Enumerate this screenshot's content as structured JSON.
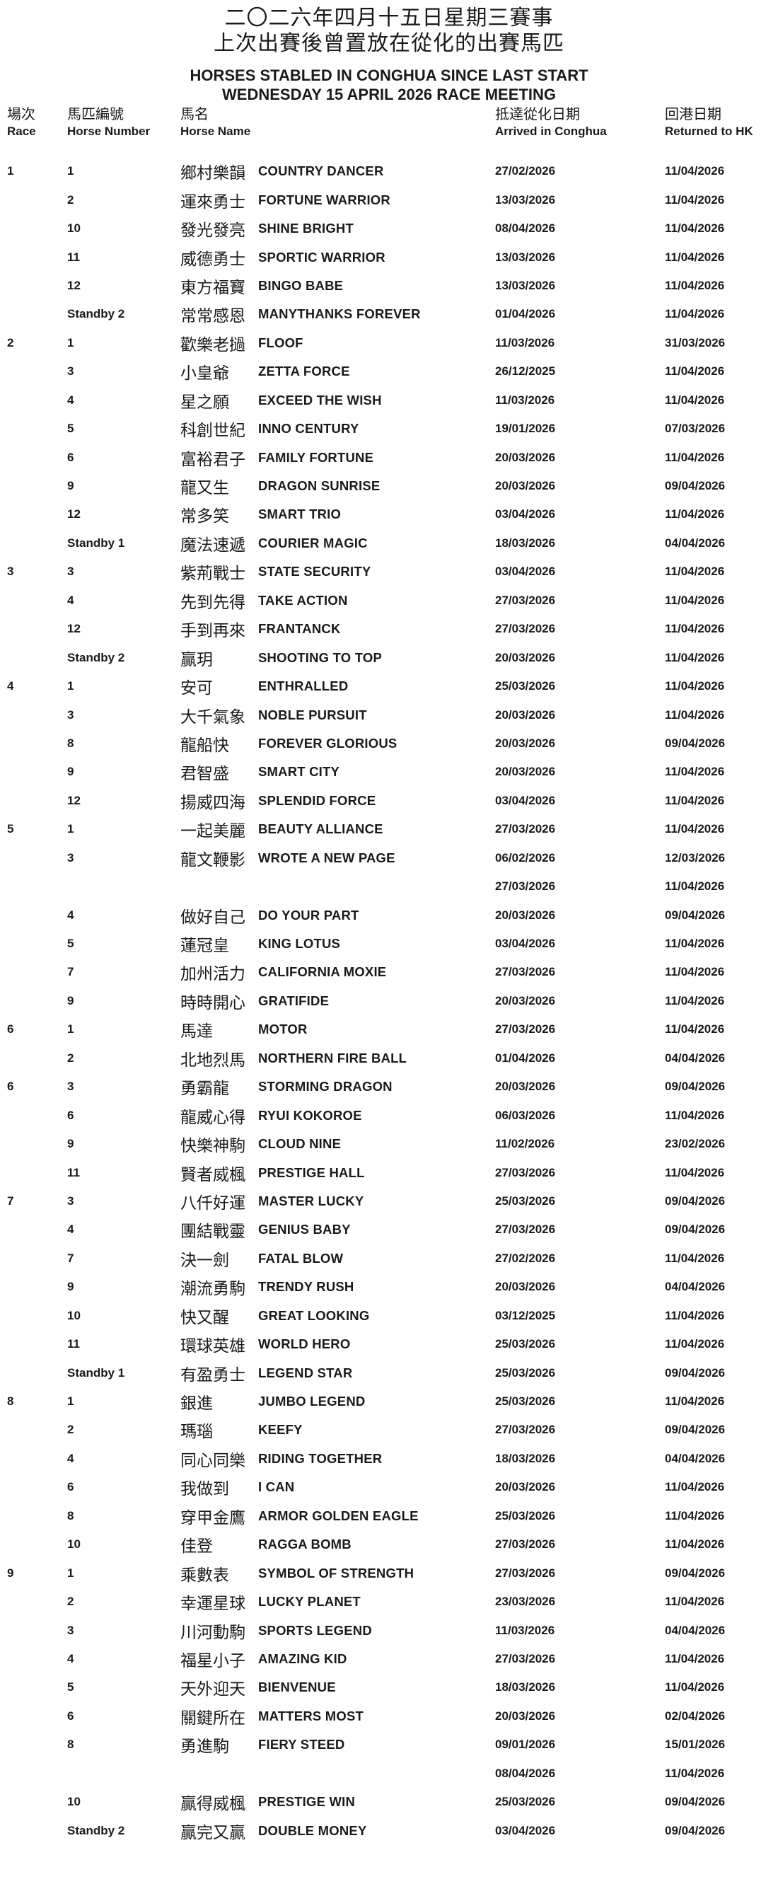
{
  "page": {
    "title_zh_line1": "二〇二六年四月十五日星期三賽事",
    "title_zh_line2": "上次出賽後曾置放在從化的出賽馬匹",
    "title_en_line1": "HORSES STABLED IN CONGHUA SINCE LAST START",
    "title_en_line2": "WEDNESDAY 15 APRIL 2026 RACE MEETING"
  },
  "columns": {
    "race_zh": "場次",
    "race_en": "Race",
    "number_zh": "馬匹編號",
    "number_en": "Horse Number",
    "name_zh": "馬名",
    "name_en": "Horse Name",
    "arrived_zh": "抵達從化日期",
    "arrived_en": "Arrived in Conghua",
    "returned_zh": "回港日期",
    "returned_en": "Returned to HK"
  },
  "colors": {
    "text": "#1a1a1a",
    "background": "#ffffff"
  },
  "rows": [
    {
      "race": "1",
      "number": "1",
      "name_zh": "鄉村樂韻",
      "name_en": "COUNTRY DANCER",
      "arrived": "27/02/2026",
      "returned": "11/04/2026"
    },
    {
      "race": "",
      "number": "2",
      "name_zh": "運來勇士",
      "name_en": "FORTUNE WARRIOR",
      "arrived": "13/03/2026",
      "returned": "11/04/2026"
    },
    {
      "race": "",
      "number": "10",
      "name_zh": "發光發亮",
      "name_en": "SHINE BRIGHT",
      "arrived": "08/04/2026",
      "returned": "11/04/2026"
    },
    {
      "race": "",
      "number": "11",
      "name_zh": "威德勇士",
      "name_en": "SPORTIC WARRIOR",
      "arrived": "13/03/2026",
      "returned": "11/04/2026"
    },
    {
      "race": "",
      "number": "12",
      "name_zh": "東方福寶",
      "name_en": "BINGO BABE",
      "arrived": "13/03/2026",
      "returned": "11/04/2026"
    },
    {
      "race": "",
      "number": "Standby 2",
      "name_zh": "常常感恩",
      "name_en": "MANYTHANKS FOREVER",
      "arrived": "01/04/2026",
      "returned": "11/04/2026"
    },
    {
      "race": "2",
      "number": "1",
      "name_zh": "歡樂老撾",
      "name_en": "FLOOF",
      "arrived": "11/03/2026",
      "returned": "31/03/2026"
    },
    {
      "race": "",
      "number": "3",
      "name_zh": "小皇爺",
      "name_en": "ZETTA FORCE",
      "arrived": "26/12/2025",
      "returned": "11/04/2026"
    },
    {
      "race": "",
      "number": "4",
      "name_zh": "星之願",
      "name_en": "EXCEED THE WISH",
      "arrived": "11/03/2026",
      "returned": "11/04/2026"
    },
    {
      "race": "",
      "number": "5",
      "name_zh": "科創世紀",
      "name_en": "INNO CENTURY",
      "arrived": "19/01/2026",
      "returned": "07/03/2026"
    },
    {
      "race": "",
      "number": "6",
      "name_zh": "富裕君子",
      "name_en": "FAMILY FORTUNE",
      "arrived": "20/03/2026",
      "returned": "11/04/2026"
    },
    {
      "race": "",
      "number": "9",
      "name_zh": "龍又生",
      "name_en": "DRAGON SUNRISE",
      "arrived": "20/03/2026",
      "returned": "09/04/2026"
    },
    {
      "race": "",
      "number": "12",
      "name_zh": "常多笑",
      "name_en": "SMART TRIO",
      "arrived": "03/04/2026",
      "returned": "11/04/2026"
    },
    {
      "race": "",
      "number": "Standby 1",
      "name_zh": "魔法速遞",
      "name_en": "COURIER MAGIC",
      "arrived": "18/03/2026",
      "returned": "04/04/2026"
    },
    {
      "race": "3",
      "number": "3",
      "name_zh": "紫荊戰士",
      "name_en": "STATE SECURITY",
      "arrived": "03/04/2026",
      "returned": "11/04/2026"
    },
    {
      "race": "",
      "number": "4",
      "name_zh": "先到先得",
      "name_en": "TAKE ACTION",
      "arrived": "27/03/2026",
      "returned": "11/04/2026"
    },
    {
      "race": "",
      "number": "12",
      "name_zh": "手到再來",
      "name_en": "FRANTANCK",
      "arrived": "27/03/2026",
      "returned": "11/04/2026"
    },
    {
      "race": "",
      "number": "Standby 2",
      "name_zh": "贏玥",
      "name_en": "SHOOTING TO TOP",
      "arrived": "20/03/2026",
      "returned": "11/04/2026"
    },
    {
      "race": "4",
      "number": "1",
      "name_zh": "安可",
      "name_en": "ENTHRALLED",
      "arrived": "25/03/2026",
      "returned": "11/04/2026"
    },
    {
      "race": "",
      "number": "3",
      "name_zh": "大千氣象",
      "name_en": "NOBLE PURSUIT",
      "arrived": "20/03/2026",
      "returned": "11/04/2026"
    },
    {
      "race": "",
      "number": "8",
      "name_zh": "龍船快",
      "name_en": "FOREVER GLORIOUS",
      "arrived": "20/03/2026",
      "returned": "09/04/2026"
    },
    {
      "race": "",
      "number": "9",
      "name_zh": "君智盛",
      "name_en": "SMART CITY",
      "arrived": "20/03/2026",
      "returned": "11/04/2026"
    },
    {
      "race": "",
      "number": "12",
      "name_zh": "揚威四海",
      "name_en": "SPLENDID FORCE",
      "arrived": "03/04/2026",
      "returned": "11/04/2026"
    },
    {
      "race": "5",
      "number": "1",
      "name_zh": "一起美麗",
      "name_en": "BEAUTY ALLIANCE",
      "arrived": "27/03/2026",
      "returned": "11/04/2026"
    },
    {
      "race": "",
      "number": "3",
      "name_zh": "龍文鞭影",
      "name_en": "WROTE A NEW PAGE",
      "arrived": "06/02/2026",
      "returned": "12/03/2026"
    },
    {
      "race": "",
      "number": "",
      "name_zh": "",
      "name_en": "",
      "arrived": "27/03/2026",
      "returned": "11/04/2026"
    },
    {
      "race": "",
      "number": "4",
      "name_zh": "做好自己",
      "name_en": "DO YOUR PART",
      "arrived": "20/03/2026",
      "returned": "09/04/2026"
    },
    {
      "race": "",
      "number": "5",
      "name_zh": "蓮冠皇",
      "name_en": "KING LOTUS",
      "arrived": "03/04/2026",
      "returned": "11/04/2026"
    },
    {
      "race": "",
      "number": "7",
      "name_zh": "加州活力",
      "name_en": "CALIFORNIA MOXIE",
      "arrived": "27/03/2026",
      "returned": "11/04/2026"
    },
    {
      "race": "",
      "number": "9",
      "name_zh": "時時開心",
      "name_en": "GRATIFIDE",
      "arrived": "20/03/2026",
      "returned": "11/04/2026"
    },
    {
      "race": "6",
      "number": "1",
      "name_zh": "馬達",
      "name_en": "MOTOR",
      "arrived": "27/03/2026",
      "returned": "11/04/2026"
    },
    {
      "race": "",
      "number": "2",
      "name_zh": "北地烈馬",
      "name_en": "NORTHERN FIRE BALL",
      "arrived": "01/04/2026",
      "returned": "04/04/2026"
    },
    {
      "race": "6",
      "number": "3",
      "name_zh": "勇霸龍",
      "name_en": "STORMING DRAGON",
      "arrived": "20/03/2026",
      "returned": "09/04/2026"
    },
    {
      "race": "",
      "number": "6",
      "name_zh": "龍威心得",
      "name_en": "RYUI KOKOROE",
      "arrived": "06/03/2026",
      "returned": "11/04/2026"
    },
    {
      "race": "",
      "number": "9",
      "name_zh": "快樂神駒",
      "name_en": "CLOUD NINE",
      "arrived": "11/02/2026",
      "returned": "23/02/2026"
    },
    {
      "race": "",
      "number": "11",
      "name_zh": "賢者威楓",
      "name_en": "PRESTIGE HALL",
      "arrived": "27/03/2026",
      "returned": "11/04/2026"
    },
    {
      "race": "7",
      "number": "3",
      "name_zh": "八仟好運",
      "name_en": "MASTER LUCKY",
      "arrived": "25/03/2026",
      "returned": "09/04/2026"
    },
    {
      "race": "",
      "number": "4",
      "name_zh": "團結戰靈",
      "name_en": "GENIUS BABY",
      "arrived": "27/03/2026",
      "returned": "09/04/2026"
    },
    {
      "race": "",
      "number": "7",
      "name_zh": "決一劍",
      "name_en": "FATAL BLOW",
      "arrived": "27/02/2026",
      "returned": "11/04/2026"
    },
    {
      "race": "",
      "number": "9",
      "name_zh": "潮流勇駒",
      "name_en": "TRENDY RUSH",
      "arrived": "20/03/2026",
      "returned": "04/04/2026"
    },
    {
      "race": "",
      "number": "10",
      "name_zh": "快又醒",
      "name_en": "GREAT LOOKING",
      "arrived": "03/12/2025",
      "returned": "11/04/2026"
    },
    {
      "race": "",
      "number": "11",
      "name_zh": "環球英雄",
      "name_en": "WORLD HERO",
      "arrived": "25/03/2026",
      "returned": "11/04/2026"
    },
    {
      "race": "",
      "number": "Standby 1",
      "name_zh": "有盈勇士",
      "name_en": "LEGEND STAR",
      "arrived": "25/03/2026",
      "returned": "09/04/2026"
    },
    {
      "race": "8",
      "number": "1",
      "name_zh": "銀進",
      "name_en": "JUMBO LEGEND",
      "arrived": "25/03/2026",
      "returned": "11/04/2026"
    },
    {
      "race": "",
      "number": "2",
      "name_zh": "瑪瑙",
      "name_en": "KEEFY",
      "arrived": "27/03/2026",
      "returned": "09/04/2026"
    },
    {
      "race": "",
      "number": "4",
      "name_zh": "同心同樂",
      "name_en": "RIDING TOGETHER",
      "arrived": "18/03/2026",
      "returned": "04/04/2026"
    },
    {
      "race": "",
      "number": "6",
      "name_zh": "我做到",
      "name_en": "I CAN",
      "arrived": "20/03/2026",
      "returned": "11/04/2026"
    },
    {
      "race": "",
      "number": "8",
      "name_zh": "穿甲金鷹",
      "name_en": "ARMOR GOLDEN EAGLE",
      "arrived": "25/03/2026",
      "returned": "11/04/2026"
    },
    {
      "race": "",
      "number": "10",
      "name_zh": "佳登",
      "name_en": "RAGGA BOMB",
      "arrived": "27/03/2026",
      "returned": "11/04/2026"
    },
    {
      "race": "9",
      "number": "1",
      "name_zh": "乘數表",
      "name_en": "SYMBOL OF STRENGTH",
      "arrived": "27/03/2026",
      "returned": "09/04/2026"
    },
    {
      "race": "",
      "number": "2",
      "name_zh": "幸運星球",
      "name_en": "LUCKY PLANET",
      "arrived": "23/03/2026",
      "returned": "11/04/2026"
    },
    {
      "race": "",
      "number": "3",
      "name_zh": "川河動駒",
      "name_en": "SPORTS LEGEND",
      "arrived": "11/03/2026",
      "returned": "04/04/2026"
    },
    {
      "race": "",
      "number": "4",
      "name_zh": "福星小子",
      "name_en": "AMAZING KID",
      "arrived": "27/03/2026",
      "returned": "11/04/2026"
    },
    {
      "race": "",
      "number": "5",
      "name_zh": "天外迎天",
      "name_en": "BIENVENUE",
      "arrived": "18/03/2026",
      "returned": "11/04/2026"
    },
    {
      "race": "",
      "number": "6",
      "name_zh": "關鍵所在",
      "name_en": "MATTERS MOST",
      "arrived": "20/03/2026",
      "returned": "02/04/2026"
    },
    {
      "race": "",
      "number": "8",
      "name_zh": "勇進駒",
      "name_en": "FIERY STEED",
      "arrived": "09/01/2026",
      "returned": "15/01/2026"
    },
    {
      "race": "",
      "number": "",
      "name_zh": "",
      "name_en": "",
      "arrived": "08/04/2026",
      "returned": "11/04/2026"
    },
    {
      "race": "",
      "number": "10",
      "name_zh": "贏得威楓",
      "name_en": "PRESTIGE WIN",
      "arrived": "25/03/2026",
      "returned": "09/04/2026"
    },
    {
      "race": "",
      "number": "Standby 2",
      "name_zh": "贏完又贏",
      "name_en": "DOUBLE MONEY",
      "arrived": "03/04/2026",
      "returned": "09/04/2026"
    }
  ]
}
